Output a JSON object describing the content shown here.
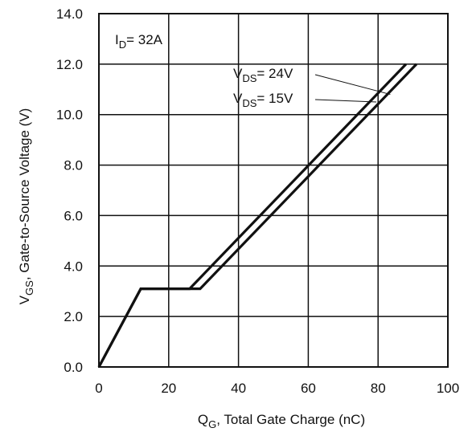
{
  "chart_data": {
    "type": "line",
    "xlabel_main": "Q",
    "xlabel_sub": "G",
    "xlabel_rest": ",  Total Gate Charge (nC)",
    "ylabel_main": "V",
    "ylabel_sub": "GS",
    "ylabel_rest": ", Gate-to-Source Voltage (V)",
    "xlim": [
      0,
      100
    ],
    "ylim": [
      0,
      14
    ],
    "x_ticks": [
      0,
      20,
      40,
      60,
      80,
      100
    ],
    "x_tick_labels": [
      "0",
      "20",
      "40",
      "60",
      "80",
      "100"
    ],
    "y_ticks": [
      0,
      2,
      4,
      6,
      8,
      10,
      12,
      14
    ],
    "y_tick_labels": [
      "0.0",
      "2.0",
      "4.0",
      "6.0",
      "8.0",
      "10.0",
      "12.0",
      "14.0"
    ],
    "grid": true,
    "condition": {
      "main": "I",
      "sub": "D",
      "rest": "= 32A"
    },
    "series": [
      {
        "label_main": "V",
        "label_sub": "DS",
        "label_rest": "= 24V",
        "points": [
          [
            0,
            0
          ],
          [
            12,
            3.1
          ],
          [
            29,
            3.1
          ],
          [
            91,
            12.0
          ]
        ]
      },
      {
        "label_main": "V",
        "label_sub": "DS",
        "label_rest": "= 15V",
        "points": [
          [
            0,
            0
          ],
          [
            12,
            3.1
          ],
          [
            26,
            3.1
          ],
          [
            88,
            12.0
          ]
        ]
      }
    ],
    "line_color": "#111111"
  }
}
